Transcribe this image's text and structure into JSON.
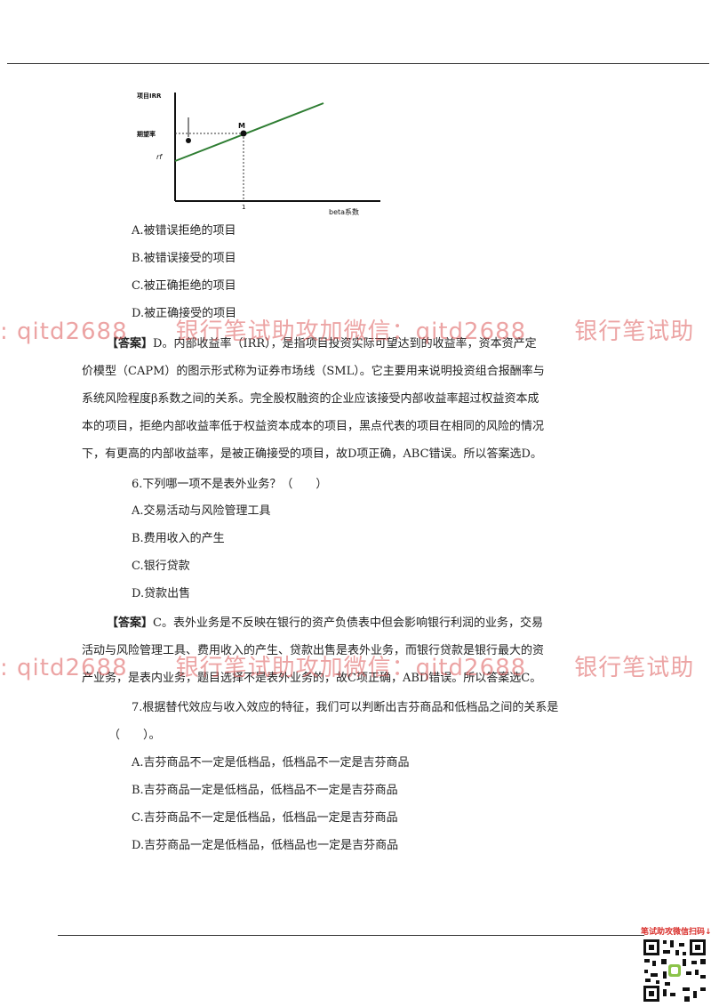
{
  "chart": {
    "y_axis_label": "项目IRR",
    "hurdle_label": "期望率",
    "rf_label": "rf",
    "point_label": "M",
    "x_tick_label": "1",
    "x_axis_label": "beta系数"
  },
  "q5_options": [
    "A.被错误拒绝的项目",
    "B.被错误接受的项目",
    "C.被正确拒绝的项目",
    "D.被正确接受的项目"
  ],
  "q5_answer": {
    "label": "【答案】",
    "lines": [
      "D。内部收益率（IRR），是指项目投资实际可望达到的收益率，资本资产定",
      "价模型（CAPM）的图示形式称为证券市场线（SML）。它主要用来说明投资组合报酬率与",
      "系统风险程度β系数之间的关系。完全股权融资的企业应该接受内部收益率超过权益资本成",
      "本的项目，拒绝内部收益率低于权益资本成本的项目，黑点代表的项目在相同的风险的情况",
      "下，有更高的内部收益率，是被正确接受的项目，故D项正确，ABC错误。所以答案选D。"
    ]
  },
  "q6": {
    "question": "6.下列哪一项不是表外业务？（　　）",
    "options": [
      "A.交易活动与风险管理工具",
      "B.费用收入的产生",
      "C.银行贷款",
      "D.贷款出售"
    ],
    "answer_label": "【答案】",
    "answer_lines": [
      "C。表外业务是不反映在银行的资产负债表中但会影响银行利润的业务，交易",
      "活动与风险管理工具、费用收入的产生、贷款出售是表外业务，而银行贷款是银行最大的资",
      "产业务，是表内业务，题目选择不是表外业务的，故C项正确，ABD错误。所以答案选C。"
    ]
  },
  "q7": {
    "question_line1": "7.根据替代效应与收入效应的特征，我们可以判断出吉芬商品和低档品之间的关系是",
    "question_line2": "（　　）。",
    "options": [
      "A.吉芬商品不一定是低档品，低档品不一定是吉芬商品",
      "B.吉芬商品一定是低档品，低档品不一定是吉芬商品",
      "C.吉芬商品不一定是低档品，低档品一定是吉芬商品",
      "D.吉芬商品一定是低档品，低档品也一定是吉芬商品"
    ]
  },
  "watermark_text": ": qitd2688　　银行笔试助攻加微信：qitd2688　　银行笔试助",
  "qr_label": "笔试助攻微信扫码↓",
  "colors": {
    "line": "#2e7d32",
    "watermark": "#dc5a5a",
    "qr_accent": "#d9302c"
  }
}
